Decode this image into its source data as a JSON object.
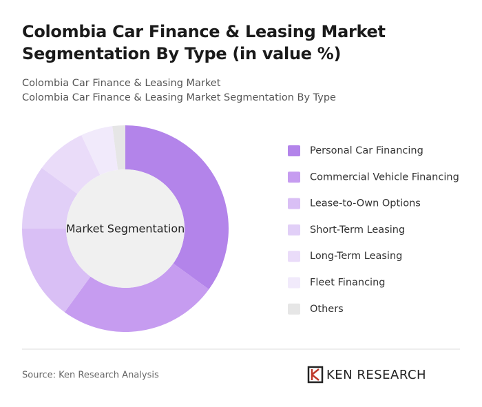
{
  "chart_data": {
    "type": "donut",
    "title": "Colombia Car Finance & Leasing Market Segmentation By Type (in value %)",
    "subtitles": [
      "Colombia Car Finance & Leasing Market",
      "Colombia Car Finance & Leasing Market Segmentation By Type"
    ],
    "center_label": "Market Segmentation",
    "categories": [
      "Personal Car Financing",
      "Commercial Vehicle Financing",
      "Lease-to-Own Options",
      "Short-Term Leasing",
      "Long-Term Leasing",
      "Fleet Financing",
      "Others"
    ],
    "values": [
      35,
      25,
      15,
      10,
      8,
      5,
      2
    ],
    "colors": [
      "#b384ea",
      "#c69cf0",
      "#d9bff5",
      "#e1cff7",
      "#eadcf9",
      "#f1eafb",
      "#e6e6e6"
    ],
    "source": "Source: Ken Research Analysis",
    "logo": "KEN RESEARCH"
  }
}
